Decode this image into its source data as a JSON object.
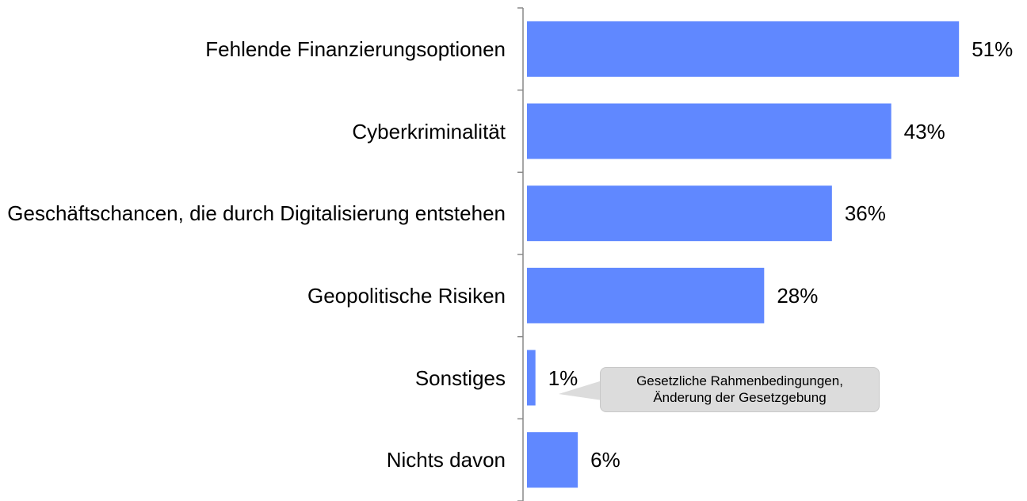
{
  "chart_data": {
    "type": "bar",
    "orientation": "horizontal",
    "categories": [
      "Fehlende Finanzierungsoptionen",
      "Cyberkriminalität",
      "Geschäftschancen, die durch Digitalisierung entstehen",
      "Geopolitische Risiken",
      "Sonstiges",
      "Nichts davon"
    ],
    "values": [
      51,
      43,
      36,
      28,
      1,
      6
    ],
    "value_labels": [
      "51%",
      "43%",
      "36%",
      "28%",
      "1%",
      "6%"
    ],
    "color": "#6088ff",
    "annotation": "Gesetzliche Rahmenbedingungen, Änderung der Gesetzgebung"
  }
}
